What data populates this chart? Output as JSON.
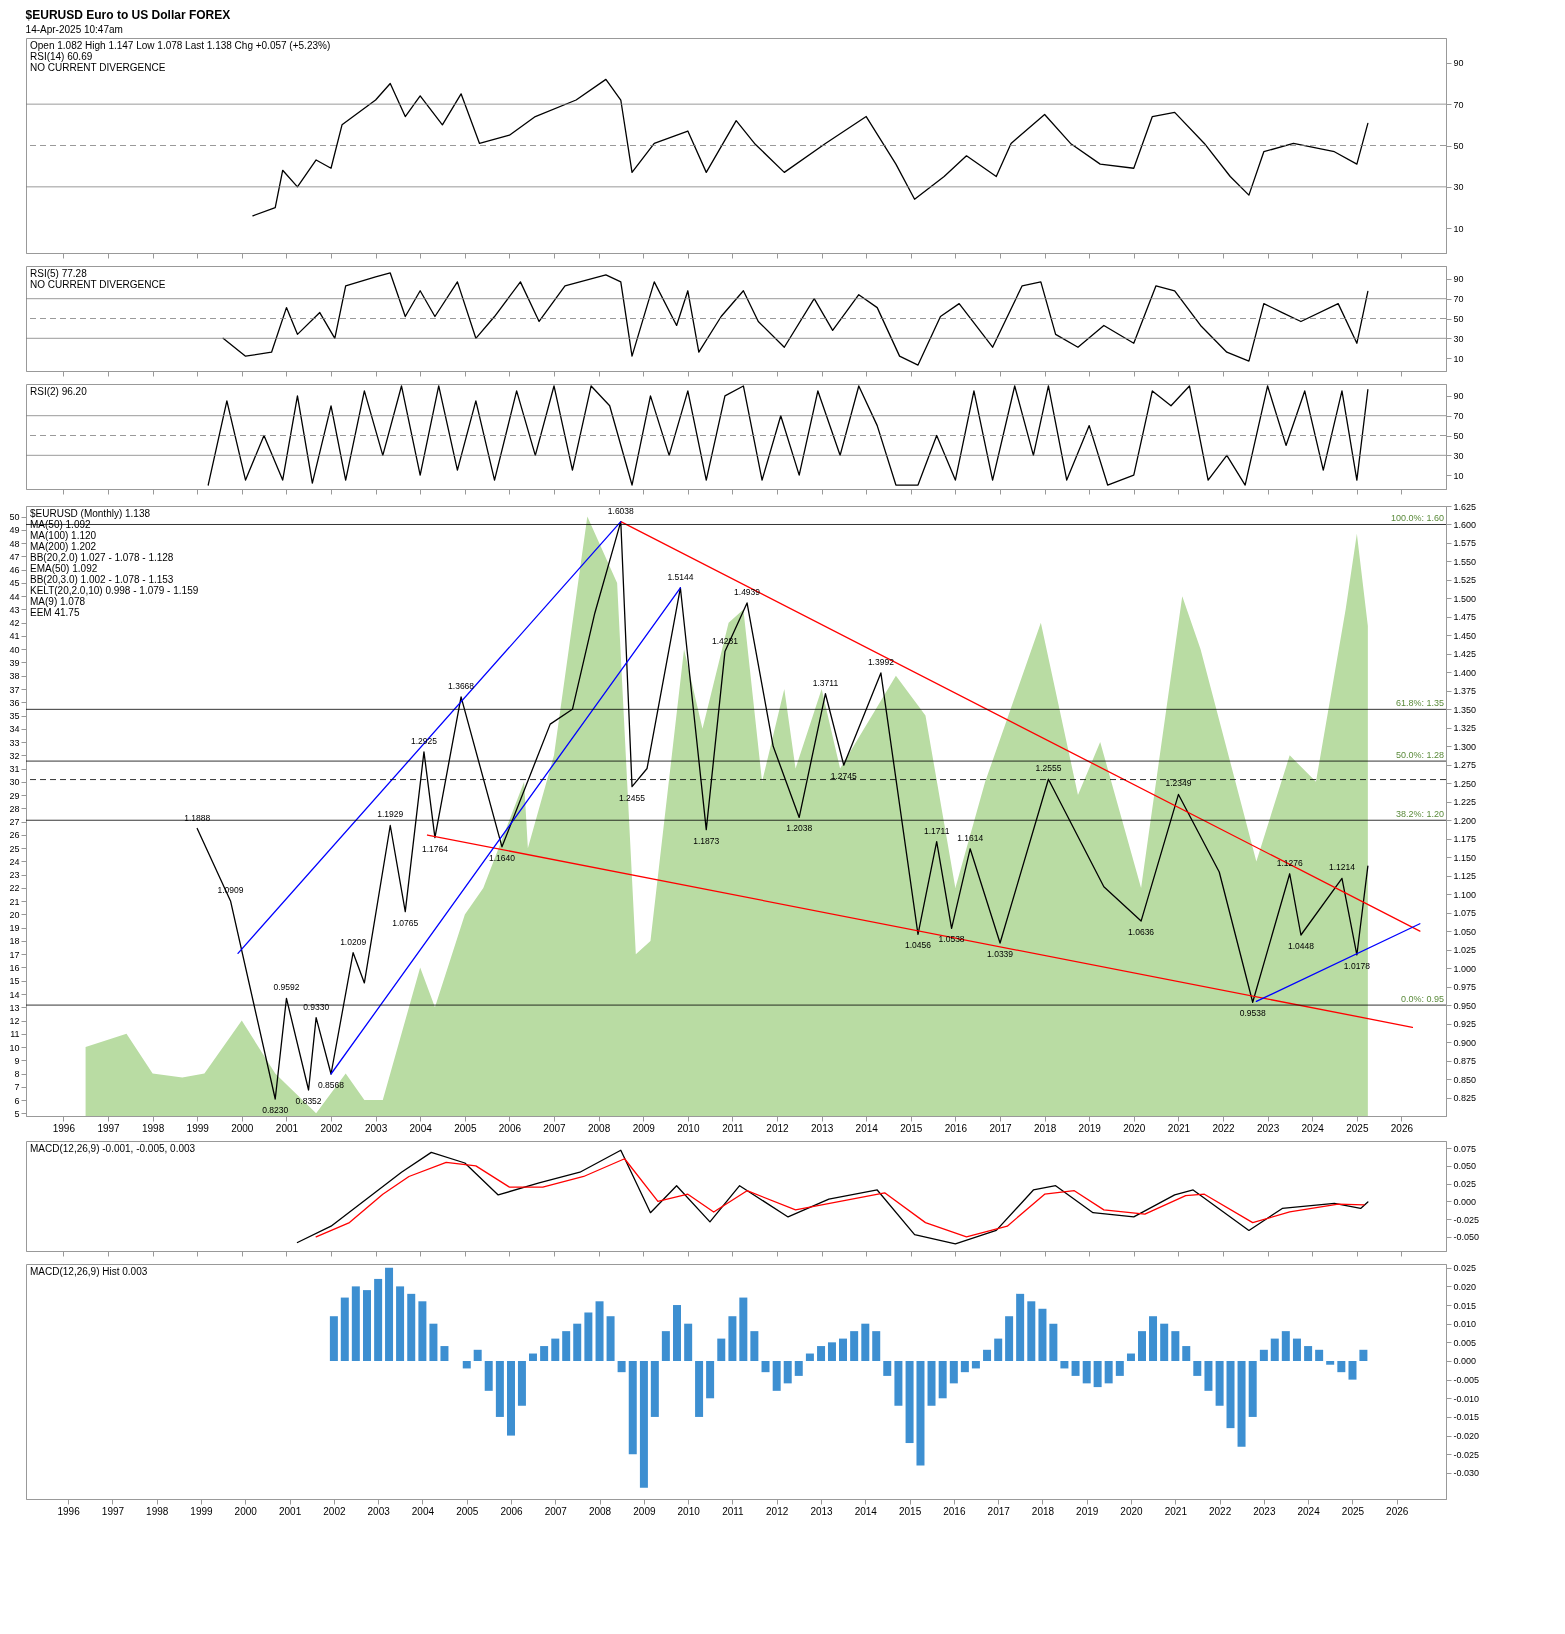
{
  "chart_data": [
    {
      "type": "line",
      "title": "$EURUSD Euro to US Dollar FOREX",
      "subtitle": "14-Apr-2025 10:47am",
      "annotations": [
        "Open 1.082 High 1.147 Low 1.078 Last 1.138 Chg +0.057 (+5.23%)",
        "RSI(14) 60.69",
        "NO CURRENT DIVERGENCE"
      ],
      "xlim": [
        "1995-03",
        "2027-01"
      ],
      "xticks": [
        "1996",
        "1997",
        "1998",
        "1999",
        "2000",
        "2001",
        "2002",
        "2003",
        "2004",
        "2005",
        "2006",
        "2007",
        "2008",
        "2009",
        "2010",
        "2011",
        "2012",
        "2013",
        "2014",
        "2015",
        "2016",
        "2017",
        "2018",
        "2019",
        "2020",
        "2021",
        "2022",
        "2023",
        "2024",
        "2025",
        "2026"
      ],
      "ylim": [
        -2,
        102
      ],
      "yticks": [
        10,
        30,
        50,
        70,
        90
      ],
      "tick_labels": "y",
      "grid": false,
      "ref_lines": [
        {
          "axis": "y",
          "value": 30,
          "color": "#808080",
          "line_style": "solid"
        },
        {
          "axis": "y",
          "value": 50,
          "color": "#808080",
          "line_style": "dashed"
        },
        {
          "axis": "y",
          "value": 70,
          "color": "#808080",
          "line_style": "solid"
        }
      ],
      "series": [
        {
          "color": "#000000",
          "x": [
            "2000-04",
            "2000-10",
            "2000-12",
            "2001-04",
            "2001-09",
            "2002-01",
            "2002-04",
            "2003-01",
            "2003-05",
            "2003-09",
            "2004-01",
            "2004-07",
            "2004-12",
            "2005-05",
            "2006-01",
            "2006-08",
            "2007-07",
            "2008-03",
            "2008-07",
            "2008-10",
            "2009-04",
            "2010-01",
            "2010-06",
            "2011-02",
            "2011-07",
            "2012-03",
            "2013-02",
            "2014-01",
            "2014-09",
            "2015-02",
            "2015-10",
            "2016-04",
            "2016-12",
            "2017-04",
            "2018-01",
            "2018-08",
            "2019-04",
            "2020-01",
            "2020-06",
            "2020-12",
            "2021-08",
            "2022-03",
            "2022-08",
            "2022-12",
            "2023-08",
            "2024-07",
            "2025-01",
            "2025-04"
          ],
          "values": [
            16,
            20,
            38,
            30,
            43,
            39,
            60,
            72,
            80,
            64,
            74,
            60,
            75,
            51,
            55,
            64,
            72,
            82,
            72,
            37,
            51,
            57,
            37,
            62,
            51,
            37,
            51,
            64,
            41,
            24,
            35,
            45,
            35,
            51,
            65,
            51,
            41,
            39,
            64,
            66,
            51,
            35,
            26,
            47,
            51,
            47,
            41,
            60.69
          ]
        }
      ]
    },
    {
      "type": "line",
      "annotations": [
        "RSI(5) 77.28",
        "NO CURRENT DIVERGENCE"
      ],
      "xlim": [
        "1995-03",
        "2027-01"
      ],
      "xticks": [
        "1996",
        "1997",
        "1998",
        "1999",
        "2000",
        "2001",
        "2002",
        "2003",
        "2004",
        "2005",
        "2006",
        "2007",
        "2008",
        "2009",
        "2010",
        "2011",
        "2012",
        "2013",
        "2014",
        "2015",
        "2016",
        "2017",
        "2018",
        "2019",
        "2020",
        "2021",
        "2022",
        "2023",
        "2024",
        "2025",
        "2026"
      ],
      "ylim": [
        -3,
        103
      ],
      "yticks": [
        10,
        30,
        50,
        70,
        90
      ],
      "tick_labels": "y",
      "grid": false,
      "ref_lines": [
        {
          "axis": "y",
          "value": 30,
          "color": "#808080",
          "line_style": "solid"
        },
        {
          "axis": "y",
          "value": 50,
          "color": "#808080",
          "line_style": "dashed"
        },
        {
          "axis": "y",
          "value": 70,
          "color": "#808080",
          "line_style": "solid"
        }
      ],
      "series": [
        {
          "color": "#000000",
          "x": [
            "1999-08",
            "2000-02",
            "2000-09",
            "2001-01",
            "2001-04",
            "2001-10",
            "2002-02",
            "2002-05",
            "2003-01",
            "2003-05",
            "2003-09",
            "2004-01",
            "2004-05",
            "2004-11",
            "2005-04",
            "2005-09",
            "2006-04",
            "2006-09",
            "2007-04",
            "2008-03",
            "2008-07",
            "2008-10",
            "2009-04",
            "2009-10",
            "2010-01",
            "2010-04",
            "2010-10",
            "2011-04",
            "2011-08",
            "2012-03",
            "2012-11",
            "2013-04",
            "2013-11",
            "2014-04",
            "2014-10",
            "2015-03",
            "2015-09",
            "2016-02",
            "2016-11",
            "2017-07",
            "2017-12",
            "2018-04",
            "2018-10",
            "2019-05",
            "2020-01",
            "2020-07",
            "2020-12",
            "2021-07",
            "2022-02",
            "2022-08",
            "2022-12",
            "2023-05",
            "2023-10",
            "2024-08",
            "2025-01",
            "2025-04"
          ],
          "values": [
            30,
            12,
            16,
            61,
            34,
            56,
            30,
            83,
            92,
            96,
            52,
            78,
            52,
            87,
            30,
            52,
            87,
            47,
            83,
            94,
            87,
            12,
            87,
            43,
            78,
            16,
            52,
            78,
            47,
            21,
            70,
            38,
            74,
            61,
            12,
            3,
            52,
            65,
            21,
            83,
            87,
            34,
            21,
            43,
            25,
            83,
            78,
            43,
            16,
            7,
            65,
            56,
            47,
            65,
            25,
            77.28
          ]
        }
      ]
    },
    {
      "type": "line",
      "annotations": [
        "RSI(2) 96.20"
      ],
      "xlim": [
        "1995-03",
        "2027-01"
      ],
      "xticks": [
        "1996",
        "1997",
        "1998",
        "1999",
        "2000",
        "2001",
        "2002",
        "2003",
        "2004",
        "2005",
        "2006",
        "2007",
        "2008",
        "2009",
        "2010",
        "2011",
        "2012",
        "2013",
        "2014",
        "2015",
        "2016",
        "2017",
        "2018",
        "2019",
        "2020",
        "2021",
        "2022",
        "2023",
        "2024",
        "2025",
        "2026"
      ],
      "ylim": [
        -4,
        102
      ],
      "yticks": [
        10,
        30,
        50,
        70,
        90
      ],
      "tick_labels": "y",
      "grid": false,
      "ref_lines": [
        {
          "axis": "y",
          "value": 30,
          "color": "#808080",
          "line_style": "solid"
        },
        {
          "axis": "y",
          "value": 50,
          "color": "#808080",
          "line_style": "dashed"
        },
        {
          "axis": "y",
          "value": 70,
          "color": "#808080",
          "line_style": "solid"
        }
      ],
      "series": [
        {
          "color": "#000000",
          "x": [
            "1999-04",
            "1999-09",
            "2000-02",
            "2000-07",
            "2000-12",
            "2001-04",
            "2001-08",
            "2002-01",
            "2002-05",
            "2002-10",
            "2003-03",
            "2003-08",
            "2004-01",
            "2004-06",
            "2004-11",
            "2005-04",
            "2005-09",
            "2006-03",
            "2006-08",
            "2007-01",
            "2007-06",
            "2007-11",
            "2008-04",
            "2008-10",
            "2009-03",
            "2009-08",
            "2010-01",
            "2010-06",
            "2010-11",
            "2011-04",
            "2011-09",
            "2012-02",
            "2012-07",
            "2012-12",
            "2013-06",
            "2013-11",
            "2014-04",
            "2014-09",
            "2015-03",
            "2015-08",
            "2016-01",
            "2016-06",
            "2016-11",
            "2017-05",
            "2017-10",
            "2018-02",
            "2018-07",
            "2019-01",
            "2019-06",
            "2020-01",
            "2020-06",
            "2020-11",
            "2021-04",
            "2021-09",
            "2022-02",
            "2022-07",
            "2023-01",
            "2023-06",
            "2023-11",
            "2024-04",
            "2024-09",
            "2025-01",
            "2025-04"
          ],
          "values": [
            0,
            85,
            5,
            50,
            5,
            90,
            2,
            80,
            5,
            95,
            30,
            100,
            10,
            100,
            15,
            85,
            5,
            95,
            30,
            100,
            15,
            100,
            80,
            0,
            90,
            30,
            95,
            5,
            90,
            100,
            5,
            70,
            10,
            95,
            30,
            100,
            60,
            0,
            0,
            50,
            5,
            95,
            5,
            100,
            30,
            100,
            5,
            60,
            0,
            10,
            95,
            80,
            100,
            5,
            30,
            0,
            100,
            40,
            95,
            15,
            95,
            5,
            96.2
          ]
        }
      ]
    },
    {
      "type": "line",
      "annotations": [
        "$EURUSD (Monthly) 1.138",
        "MA(50) 1.092",
        "MA(100) 1.120",
        "MA(200) 1.202",
        "BB(20,2.0) 1.027 - 1.078 - 1.128",
        "EMA(50) 1.092",
        "BB(20,3.0) 1.002 - 1.078 - 1.153",
        "KELT(20,2.0,10) 0.998 - 1.079 - 1.159",
        "MA(9) 1.078",
        "EEM 41.75",
        {
          "text": "1.1888",
          "x": "1999-01",
          "y": 1.1888
        },
        {
          "text": "1.0909",
          "x": "1999-10",
          "y": 1.0909
        },
        {
          "text": "0.8230",
          "x": "2000-10",
          "y": 0.823
        },
        {
          "text": "0.9592",
          "x": "2001-01",
          "y": 0.9592
        },
        {
          "text": "0.8352",
          "x": "2001-07",
          "y": 0.8352
        },
        {
          "text": "0.9330",
          "x": "2001-09",
          "y": 0.933
        },
        {
          "text": "0.8568",
          "x": "2002-01",
          "y": 0.8568
        },
        {
          "text": "1.0209",
          "x": "2002-07",
          "y": 1.0209
        },
        {
          "text": "1.1929",
          "x": "2003-05",
          "y": 1.1929
        },
        {
          "text": "1.0765",
          "x": "2003-09",
          "y": 1.0765
        },
        {
          "text": "1.2925",
          "x": "2004-02",
          "y": 1.2925
        },
        {
          "text": "1.1764",
          "x": "2004-05",
          "y": 1.1764
        },
        {
          "text": "1.3668",
          "x": "2004-12",
          "y": 1.3668
        },
        {
          "text": "1.1640",
          "x": "2005-11",
          "y": 1.164
        },
        {
          "text": "1.6038",
          "x": "2008-07",
          "y": 1.6038
        },
        {
          "text": "1.2455",
          "x": "2008-10",
          "y": 1.2455
        },
        {
          "text": "1.5144",
          "x": "2009-11",
          "y": 1.5144
        },
        {
          "text": "1.1873",
          "x": "2010-06",
          "y": 1.1873
        },
        {
          "text": "1.4281",
          "x": "2010-11",
          "y": 1.4281
        },
        {
          "text": "1.4939",
          "x": "2011-05",
          "y": 1.4939
        },
        {
          "text": "1.2038",
          "x": "2012-07",
          "y": 1.2038
        },
        {
          "text": "1.3711",
          "x": "2013-02",
          "y": 1.3711
        },
        {
          "text": "1.2745",
          "x": "2013-07",
          "y": 1.2745
        },
        {
          "text": "1.3992",
          "x": "2014-05",
          "y": 1.3992
        },
        {
          "text": "1.0456",
          "x": "2015-03",
          "y": 1.0456
        },
        {
          "text": "1.1711",
          "x": "2015-08",
          "y": 1.1711
        },
        {
          "text": "1.0538",
          "x": "2015-12",
          "y": 1.0538
        },
        {
          "text": "1.1614",
          "x": "2016-05",
          "y": 1.1614
        },
        {
          "text": "1.0339",
          "x": "2017-01",
          "y": 1.0339
        },
        {
          "text": "1.2555",
          "x": "2018-02",
          "y": 1.2555
        },
        {
          "text": "1.0636",
          "x": "2020-03",
          "y": 1.0636
        },
        {
          "text": "1.2349",
          "x": "2021-01",
          "y": 1.2349
        },
        {
          "text": "0.9538",
          "x": "2022-09",
          "y": 0.9538
        },
        {
          "text": "1.1276",
          "x": "2023-07",
          "y": 1.1276
        },
        {
          "text": "1.0448",
          "x": "2023-10",
          "y": 1.0448
        },
        {
          "text": "1.1214",
          "x": "2024-09",
          "y": 1.1214
        },
        {
          "text": "1.0178",
          "x": "2025-01",
          "y": 1.0178
        }
      ],
      "xlim": [
        "1995-03",
        "2027-01"
      ],
      "xticks": [
        "1996",
        "1997",
        "1998",
        "1999",
        "2000",
        "2001",
        "2002",
        "2003",
        "2004",
        "2005",
        "2006",
        "2007",
        "2008",
        "2009",
        "2010",
        "2011",
        "2012",
        "2013",
        "2014",
        "2015",
        "2016",
        "2017",
        "2018",
        "2019",
        "2020",
        "2021",
        "2022",
        "2023",
        "2024",
        "2025",
        "2026"
      ],
      "ylim": [
        0.8,
        1.625
      ],
      "yticks": [
        0.825,
        {
          "value": 0.85,
          "label": "0.850"
        },
        0.875,
        {
          "value": 0.9,
          "label": "0.900"
        },
        0.925,
        {
          "value": 0.95,
          "label": "0.950"
        },
        0.975,
        {
          "value": 1,
          "label": "1.000"
        },
        1.025,
        {
          "value": 1.05,
          "label": "1.050"
        },
        1.075,
        {
          "value": 1.1,
          "label": "1.100"
        },
        1.125,
        {
          "value": 1.15,
          "label": "1.150"
        },
        1.175,
        {
          "value": 1.2,
          "label": "1.200"
        },
        1.225,
        {
          "value": 1.25,
          "label": "1.250"
        },
        1.275,
        {
          "value": 1.3,
          "label": "1.300"
        },
        1.325,
        {
          "value": 1.35,
          "label": "1.350"
        },
        1.375,
        {
          "value": 1.4,
          "label": "1.400"
        },
        1.425,
        {
          "value": 1.45,
          "label": "1.450"
        },
        1.475,
        {
          "value": 1.5,
          "label": "1.500"
        },
        1.525,
        {
          "value": 1.55,
          "label": "1.550"
        },
        1.575,
        {
          "value": 1.6,
          "label": "1.600"
        },
        1.625
      ],
      "y2lim": [
        4.8,
        50.8
      ],
      "y2ticks": [
        5,
        6,
        7,
        8,
        9,
        10,
        11,
        12,
        13,
        14,
        15,
        16,
        17,
        18,
        19,
        20,
        21,
        22,
        23,
        24,
        25,
        26,
        27,
        28,
        29,
        30,
        31,
        32,
        33,
        34,
        35,
        36,
        37,
        38,
        39,
        40,
        41,
        42,
        43,
        44,
        45,
        46,
        47,
        48,
        49,
        50
      ],
      "grid": false,
      "ref_lines": [
        {
          "axis": "y",
          "value": 1.6,
          "label": "100.0%: 1.60",
          "color": "#000000",
          "line_style": "solid"
        },
        {
          "axis": "y",
          "value": 1.35,
          "label": "61.8%: 1.35",
          "color": "#000000",
          "line_style": "solid"
        },
        {
          "axis": "y",
          "value": 1.28,
          "label": "50.0%: 1.28",
          "color": "#000000",
          "line_style": "solid"
        },
        {
          "axis": "y",
          "value": 1.2,
          "label": "38.2%: 1.20",
          "color": "#000000",
          "line_style": "solid"
        },
        {
          "axis": "y",
          "value": 1.255,
          "color": "#000000",
          "line_style": "dashed"
        },
        {
          "axis": "y",
          "value": 0.95,
          "label": "0.0%: 0.95",
          "color": "#000000",
          "line_style": "solid"
        }
      ],
      "series": [
        {
          "type": "area",
          "axis": "y2",
          "color": "#b9dca3",
          "x": [
            "1996-07",
            "1997-06",
            "1998-01",
            "1998-09",
            "1999-03",
            "2000-01",
            "2000-10",
            "2001-09",
            "2002-05",
            "2002-10",
            "2003-03",
            "2004-01",
            "2004-05",
            "2005-01",
            "2005-06",
            "2006-05",
            "2006-06",
            "2007-01",
            "2007-10",
            "2008-06",
            "2008-11",
            "2009-03",
            "2009-12",
            "2010-05",
            "2010-12",
            "2011-04",
            "2011-09",
            "2012-03",
            "2012-06",
            "2013-01",
            "2013-06",
            "2014-09",
            "2015-05",
            "2016-01",
            "2016-09",
            "2017-12",
            "2018-10",
            "2019-04",
            "2020-03",
            "2021-02",
            "2021-07",
            "2022-10",
            "2023-07",
            "2024-02",
            "2024-10",
            "2025-01",
            "2025-04"
          ],
          "values": [
            10,
            11,
            8,
            7.7,
            8,
            12,
            8,
            5,
            8,
            6,
            6,
            16,
            13,
            20,
            22,
            30,
            25,
            32,
            50,
            45,
            17,
            18,
            40,
            34,
            42,
            43,
            30,
            37,
            31,
            37,
            31,
            38,
            35,
            22,
            30,
            42,
            29,
            33,
            22,
            44,
            40,
            24,
            32,
            30,
            43,
            48.7,
            41.75
          ]
        },
        {
          "color": "#000000",
          "x": [
            "1999-01",
            "1999-10",
            "2000-10",
            "2001-01",
            "2001-07",
            "2001-09",
            "2002-01",
            "2002-07",
            "2002-10",
            "2003-05",
            "2003-09",
            "2004-02",
            "2004-05",
            "2004-12",
            "2005-11",
            "2006-12",
            "2007-06",
            "2007-12",
            "2008-07",
            "2008-10",
            "2009-02",
            "2009-11",
            "2010-06",
            "2010-11",
            "2011-05",
            "2011-12",
            "2012-07",
            "2013-02",
            "2013-07",
            "2014-05",
            "2015-03",
            "2015-08",
            "2015-12",
            "2016-05",
            "2017-01",
            "2018-02",
            "2019-05",
            "2020-03",
            "2021-01",
            "2021-12",
            "2022-09",
            "2023-07",
            "2023-10",
            "2024-09",
            "2025-01",
            "2025-04"
          ],
          "values": [
            1.1888,
            1.0909,
            0.823,
            0.9592,
            0.8352,
            0.933,
            0.8568,
            1.0209,
            0.98,
            1.1929,
            1.0765,
            1.2925,
            1.1764,
            1.3668,
            1.164,
            1.33,
            1.35,
            1.48,
            1.6038,
            1.2455,
            1.27,
            1.5144,
            1.1873,
            1.4281,
            1.4939,
            1.3,
            1.2038,
            1.3711,
            1.2745,
            1.3992,
            1.0456,
            1.1711,
            1.0538,
            1.1614,
            1.0339,
            1.2555,
            1.11,
            1.0636,
            1.2349,
            1.13,
            0.9538,
            1.1276,
            1.0448,
            1.1214,
            1.0178,
            1.138
          ]
        },
        {
          "color": "#ff0000",
          "x": [
            "2008-07",
            "2026-06"
          ],
          "values": [
            1.6038,
            1.05
          ]
        },
        {
          "color": "#ff0000",
          "x": [
            "2004-03",
            "2026-04"
          ],
          "values": [
            1.18,
            0.92
          ]
        },
        {
          "color": "#0000ff",
          "x": [
            "2022-10",
            "2026-06"
          ],
          "values": [
            0.955,
            1.06
          ]
        },
        {
          "color": "#0000ff",
          "x": [
            "1999-12",
            "2008-07"
          ],
          "values": [
            1.02,
            1.6038
          ]
        },
        {
          "color": "#0000ff",
          "x": [
            "2002-01",
            "2009-11"
          ],
          "values": [
            0.8568,
            1.5144
          ]
        }
      ]
    },
    {
      "type": "line",
      "annotations": [
        "MACD(12,26,9) -0.001, -0.005, 0.003"
      ],
      "xlim": [
        "1995-03",
        "2027-01"
      ],
      "xticks": [
        "1996",
        "1997",
        "1998",
        "1999",
        "2000",
        "2001",
        "2002",
        "2003",
        "2004",
        "2005",
        "2006",
        "2007",
        "2008",
        "2009",
        "2010",
        "2011",
        "2012",
        "2013",
        "2014",
        "2015",
        "2016",
        "2017",
        "2018",
        "2019",
        "2020",
        "2021",
        "2022",
        "2023",
        "2024",
        "2025",
        "2026"
      ],
      "ylim": [
        -0.07,
        0.085
      ],
      "yticks": [
        0.075,
        {
          "value": 0.05,
          "label": "0.050"
        },
        0.025,
        {
          "value": 0,
          "label": "0.000"
        },
        -0.025,
        {
          "value": -0.05,
          "label": "-0.050"
        }
      ],
      "tick_labels": "y",
      "grid": false,
      "series": [
        {
          "color": "#000000",
          "x": [
            "2001-04",
            "2002-01",
            "2002-12",
            "2003-08",
            "2004-04",
            "2005-01",
            "2005-10",
            "2006-09",
            "2007-08",
            "2008-07",
            "2009-03",
            "2009-10",
            "2010-07",
            "2011-03",
            "2012-04",
            "2013-03",
            "2014-04",
            "2015-02",
            "2016-01",
            "2016-12",
            "2017-10",
            "2018-04",
            "2019-02",
            "2020-01",
            "2020-12",
            "2021-05",
            "2022-08",
            "2023-05",
            "2024-07",
            "2025-02",
            "2025-04"
          ],
          "values": [
            -0.058,
            -0.035,
            0.009,
            0.041,
            0.069,
            0.054,
            0.009,
            0.026,
            0.041,
            0.072,
            -0.016,
            0.022,
            -0.029,
            0.022,
            -0.022,
            0.003,
            0.016,
            -0.047,
            -0.06,
            -0.041,
            0.016,
            0.022,
            -0.016,
            -0.022,
            0.009,
            0.016,
            -0.041,
            -0.01,
            -0.003,
            -0.01,
            -0.001
          ]
        },
        {
          "color": "#ff0000",
          "x": [
            "2001-09",
            "2002-06",
            "2003-03",
            "2003-10",
            "2004-08",
            "2005-04",
            "2006-01",
            "2006-10",
            "2007-09",
            "2008-08",
            "2009-05",
            "2010-01",
            "2010-08",
            "2011-05",
            "2012-06",
            "2013-06",
            "2014-06",
            "2015-05",
            "2016-04",
            "2017-03",
            "2018-01",
            "2018-09",
            "2019-05",
            "2020-04",
            "2021-03",
            "2021-08",
            "2022-09",
            "2023-07",
            "2024-08",
            "2025-03"
          ],
          "values": [
            -0.05,
            -0.03,
            0.01,
            0.035,
            0.055,
            0.05,
            0.02,
            0.02,
            0.035,
            0.06,
            0,
            0.01,
            -0.015,
            0.015,
            -0.012,
            0,
            0.012,
            -0.03,
            -0.05,
            -0.035,
            0.01,
            0.015,
            -0.012,
            -0.018,
            0.008,
            0.01,
            -0.03,
            -0.015,
            -0.004,
            -0.005
          ]
        }
      ]
    },
    {
      "type": "bar",
      "annotations": [
        "MACD(12,26,9) Hist 0.003"
      ],
      "xlim": [
        "1995-03",
        "2027-01"
      ],
      "xticks": [
        "1996",
        "1997",
        "1998",
        "1999",
        "2000",
        "2001",
        "2002",
        "2003",
        "2004",
        "2005",
        "2006",
        "2007",
        "2008",
        "2009",
        "2010",
        "2011",
        "2012",
        "2013",
        "2014",
        "2015",
        "2016",
        "2017",
        "2018",
        "2019",
        "2020",
        "2021",
        "2022",
        "2023",
        "2024",
        "2025",
        "2026"
      ],
      "ylim": [
        -0.037,
        0.026
      ],
      "yticks": [
        0.025,
        {
          "value": 0.02,
          "label": "0.020"
        },
        0.015,
        {
          "value": 0.01,
          "label": "0.010"
        },
        0.005,
        {
          "value": 0,
          "label": "0.000"
        },
        -0.005,
        {
          "value": -0.01,
          "label": "-0.010"
        },
        -0.015,
        {
          "value": -0.02,
          "label": "-0.020"
        },
        -0.025,
        {
          "value": -0.03,
          "label": "-0.030"
        }
      ],
      "grid": false,
      "series": [
        {
          "color": "#3d8fd1",
          "x": [
            "2002-01",
            "2002-04",
            "2002-07",
            "2002-10",
            "2003-01",
            "2003-04",
            "2003-07",
            "2003-10",
            "2004-01",
            "2004-04",
            "2004-07",
            "2004-10",
            "2005-01",
            "2005-04",
            "2005-07",
            "2005-10",
            "2006-01",
            "2006-04",
            "2006-07",
            "2006-10",
            "2007-01",
            "2007-04",
            "2007-07",
            "2007-10",
            "2008-01",
            "2008-04",
            "2008-07",
            "2008-10",
            "2009-01",
            "2009-04",
            "2009-07",
            "2009-10",
            "2010-01",
            "2010-04",
            "2010-07",
            "2010-10",
            "2011-01",
            "2011-04",
            "2011-07",
            "2011-10",
            "2012-01",
            "2012-04",
            "2012-07",
            "2012-10",
            "2013-01",
            "2013-04",
            "2013-07",
            "2013-10",
            "2014-01",
            "2014-04",
            "2014-07",
            "2014-10",
            "2015-01",
            "2015-04",
            "2015-07",
            "2015-10",
            "2016-01",
            "2016-04",
            "2016-07",
            "2016-10",
            "2017-01",
            "2017-04",
            "2017-07",
            "2017-10",
            "2018-01",
            "2018-04",
            "2018-07",
            "2018-10",
            "2019-01",
            "2019-04",
            "2019-07",
            "2019-10",
            "2020-01",
            "2020-04",
            "2020-07",
            "2020-10",
            "2021-01",
            "2021-04",
            "2021-07",
            "2021-10",
            "2022-01",
            "2022-04",
            "2022-07",
            "2022-10",
            "2023-01",
            "2023-04",
            "2023-07",
            "2023-10",
            "2024-01",
            "2024-04",
            "2024-07",
            "2024-10",
            "2025-01",
            "2025-04"
          ],
          "values": [
            0.012,
            0.017,
            0.02,
            0.019,
            0.022,
            0.025,
            0.02,
            0.018,
            0.016,
            0.01,
            0.004,
            0,
            -0.002,
            0.003,
            -0.008,
            -0.015,
            -0.02,
            -0.012,
            0.002,
            0.004,
            0.006,
            0.008,
            0.01,
            0.013,
            0.016,
            0.012,
            -0.003,
            -0.025,
            -0.034,
            -0.015,
            0.008,
            0.015,
            0.01,
            -0.015,
            -0.01,
            0.006,
            0.012,
            0.017,
            0.008,
            -0.003,
            -0.008,
            -0.006,
            -0.004,
            0.002,
            0.004,
            0.005,
            0.006,
            0.008,
            0.01,
            0.008,
            -0.004,
            -0.012,
            -0.022,
            -0.028,
            -0.012,
            -0.01,
            -0.006,
            -0.003,
            -0.002,
            0.003,
            0.006,
            0.012,
            0.018,
            0.016,
            0.014,
            0.01,
            -0.002,
            -0.004,
            -0.006,
            -0.007,
            -0.006,
            -0.004,
            0.002,
            0.008,
            0.012,
            0.01,
            0.008,
            0.004,
            -0.004,
            -0.008,
            -0.012,
            -0.018,
            -0.023,
            -0.015,
            0.003,
            0.006,
            0.008,
            0.006,
            0.004,
            0.003,
            -0.001,
            -0.003,
            -0.005,
            0.003
          ]
        }
      ]
    }
  ]
}
